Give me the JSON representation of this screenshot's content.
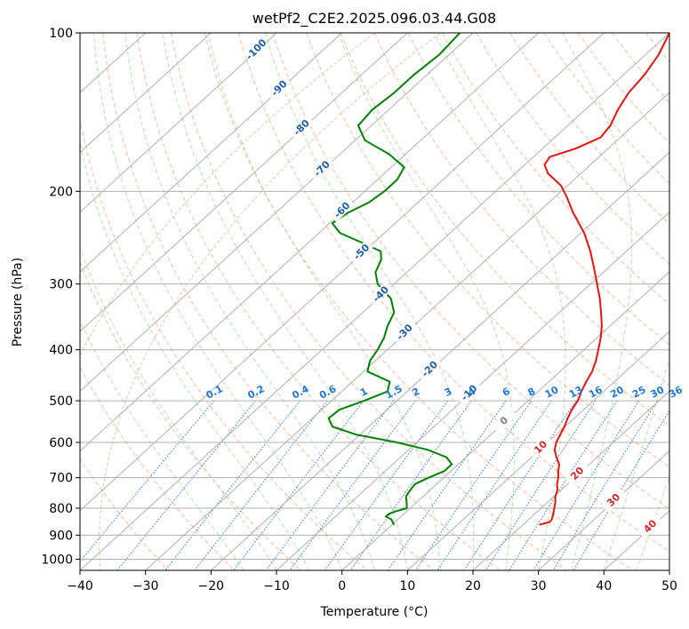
{
  "chart_data": {
    "type": "line",
    "subtype": "skew-t",
    "title": "wetPf2_C2E2.2025.096.03.44.G08",
    "xlabel": "Temperature (°C)",
    "ylabel": "Pressure (hPa)",
    "xlim": [
      -40,
      50
    ],
    "ylim": [
      1050,
      100
    ],
    "y_scale": "log",
    "grid": true,
    "x_ticks": [
      "−40",
      "−30",
      "−20",
      "−10",
      "0",
      "10",
      "20",
      "30",
      "40",
      "50"
    ],
    "x_tick_values": [
      -40,
      -30,
      -20,
      -10,
      0,
      10,
      20,
      30,
      40,
      50
    ],
    "y_ticks": [
      "100",
      "200",
      "300",
      "400",
      "500",
      "600",
      "700",
      "800",
      "900",
      "1000"
    ],
    "y_tick_values": [
      100,
      200,
      300,
      400,
      500,
      600,
      700,
      800,
      900,
      1000
    ],
    "series": [
      {
        "role": "temperature",
        "color": "#e8150f",
        "pressure": [
          860,
          850,
          840,
          820,
          800,
          780,
          760,
          740,
          720,
          700,
          680,
          660,
          640,
          620,
          600,
          580,
          560,
          540,
          520,
          500,
          480,
          460,
          440,
          420,
          400,
          380,
          360,
          340,
          320,
          300,
          280,
          260,
          240,
          220,
          205,
          195,
          185,
          178,
          172,
          166,
          158,
          150,
          140,
          130,
          120,
          110,
          100
        ],
        "temperature": [
          22.5,
          23.6,
          23.5,
          22.8,
          22.0,
          21.2,
          20.2,
          19.5,
          18.4,
          17.5,
          16.4,
          15.4,
          13.8,
          12.3,
          11.3,
          10.6,
          9.9,
          9.0,
          8.2,
          7.6,
          6.6,
          5.7,
          4.9,
          3.7,
          2.2,
          0.6,
          -1.3,
          -3.6,
          -6.1,
          -9.0,
          -12.1,
          -15.5,
          -19.5,
          -24.5,
          -28.2,
          -31.0,
          -35.0,
          -37.0,
          -37.5,
          -35.0,
          -33.0,
          -33.5,
          -35.0,
          -36.2,
          -36.8,
          -38.0,
          -40.0
        ]
      },
      {
        "role": "dewpoint",
        "color": "#008000",
        "pressure": [
          860,
          840,
          830,
          820,
          810,
          800,
          780,
          760,
          740,
          720,
          700,
          680,
          660,
          640,
          620,
          600,
          580,
          560,
          540,
          520,
          500,
          480,
          460,
          440,
          420,
          400,
          380,
          360,
          340,
          320,
          300,
          285,
          270,
          260,
          250,
          240,
          230,
          220,
          210,
          200,
          190,
          180,
          170,
          160,
          150,
          140,
          130,
          120,
          110,
          100
        ],
        "dewpoint": [
          0.3,
          -1.0,
          -2.3,
          -2.3,
          -1.6,
          -0.5,
          -1.5,
          -2.6,
          -3.0,
          -3.3,
          -2.3,
          -1.0,
          -1.0,
          -3.0,
          -7.0,
          -13.0,
          -20.5,
          -25.5,
          -27.5,
          -27.3,
          -25.0,
          -23.0,
          -24.3,
          -29.4,
          -30.8,
          -31.5,
          -32.5,
          -34.0,
          -35.2,
          -38.0,
          -42.5,
          -44.8,
          -46.0,
          -47.5,
          -52.0,
          -56.8,
          -59.6,
          -59.0,
          -57.5,
          -57.0,
          -57.0,
          -58.0,
          -62.5,
          -68.5,
          -72.0,
          -72.5,
          -72.0,
          -72.0,
          -71.5,
          -72.0
        ]
      }
    ],
    "isotherm_labels": [
      "-100",
      "-90",
      "-80",
      "-70",
      "-60",
      "-50",
      "-40",
      "-30",
      "-20",
      "-10",
      "0",
      "10",
      "20",
      "30",
      "40"
    ],
    "isotherm_label_temps": [
      -100,
      -90,
      -80,
      -70,
      -60,
      -50,
      -40,
      -30,
      -20,
      -10,
      0,
      10,
      20,
      30,
      40
    ],
    "mixing_ratio_labels": [
      "0.1",
      "0.2",
      "0.4",
      "0.6",
      "1",
      "1.5",
      "2",
      "3",
      "4",
      "6",
      "8",
      "10",
      "13",
      "16",
      "20",
      "25",
      "30",
      "36"
    ],
    "mixing_ratio_values": [
      0.1,
      0.2,
      0.4,
      0.6,
      1,
      1.5,
      2,
      3,
      4,
      6,
      8,
      10,
      13,
      16,
      20,
      25,
      30,
      36
    ],
    "colors": {
      "temperature": "#e8150f",
      "dewpoint": "#008000",
      "isotherm": "#b0b0b0",
      "dry_adiabat": "#f4a582",
      "moist_adiabat": "#a6d8a6",
      "mixing_ratio": "#1f77d4",
      "isotherm_label_cold": "#1f5fa8",
      "isotherm_label_warm": "#d62728",
      "isotherm_label_zero": "#7f7f7f",
      "lcl_curve": "#d9c4a8"
    }
  }
}
